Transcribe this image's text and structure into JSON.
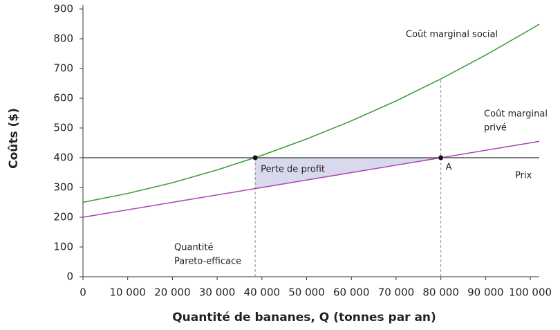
{
  "chart_data": {
    "type": "line",
    "x_label": "Quantité de bananes, Q (tonnes par an)",
    "y_label": "Coûts ($)",
    "x": [
      0,
      10000,
      20000,
      30000,
      40000,
      50000,
      60000,
      70000,
      80000,
      90000,
      100000,
      102000
    ],
    "series": [
      {
        "name": "Coût marginal social",
        "color": "#3c9f3c",
        "values": [
          250,
          280,
          316,
          359,
          408,
          463,
          524,
          591,
          665,
          745,
          831,
          849
        ]
      },
      {
        "name": "Coût marginal privé",
        "color": "#b044b8",
        "values": [
          200,
          225,
          250,
          275,
          300,
          325,
          350,
          375,
          400,
          425,
          450,
          455
        ]
      }
    ],
    "price": {
      "label": "Prix",
      "value": 400
    },
    "points": [
      {
        "x": 38500,
        "y": 400
      },
      {
        "x": 80000,
        "y": 400,
        "label": "A"
      }
    ],
    "dashed": [
      {
        "x": 38500,
        "y": 400
      },
      {
        "x": 80000,
        "y": 665
      }
    ],
    "shaded": {
      "label": "Perte de profit",
      "x": [
        38500,
        80000
      ],
      "color": "#d9d9ee"
    },
    "annotations": [
      [
        "Coût marginal social"
      ],
      [
        "Coût marginal",
        "privé"
      ],
      [
        "Quantité",
        "Pareto-efficace"
      ]
    ],
    "xlim": [
      0,
      102000
    ],
    "ylim": [
      0,
      900
    ],
    "xticks": [
      {
        "value": 0,
        "label": "0"
      },
      {
        "value": 10000,
        "label": "10 000"
      },
      {
        "value": 20000,
        "label": "20 000"
      },
      {
        "value": 30000,
        "label": "30 000"
      },
      {
        "value": 40000,
        "label": "40 000"
      },
      {
        "value": 50000,
        "label": "50 000"
      },
      {
        "value": 60000,
        "label": "60 000"
      },
      {
        "value": 70000,
        "label": "70 000"
      },
      {
        "value": 80000,
        "label": "80 000"
      },
      {
        "value": 90000,
        "label": "90 000"
      },
      {
        "value": 100000,
        "label": "100 000"
      }
    ],
    "yticks": [
      0,
      100,
      200,
      300,
      400,
      500,
      600,
      700,
      800,
      900
    ],
    "grid": false
  }
}
